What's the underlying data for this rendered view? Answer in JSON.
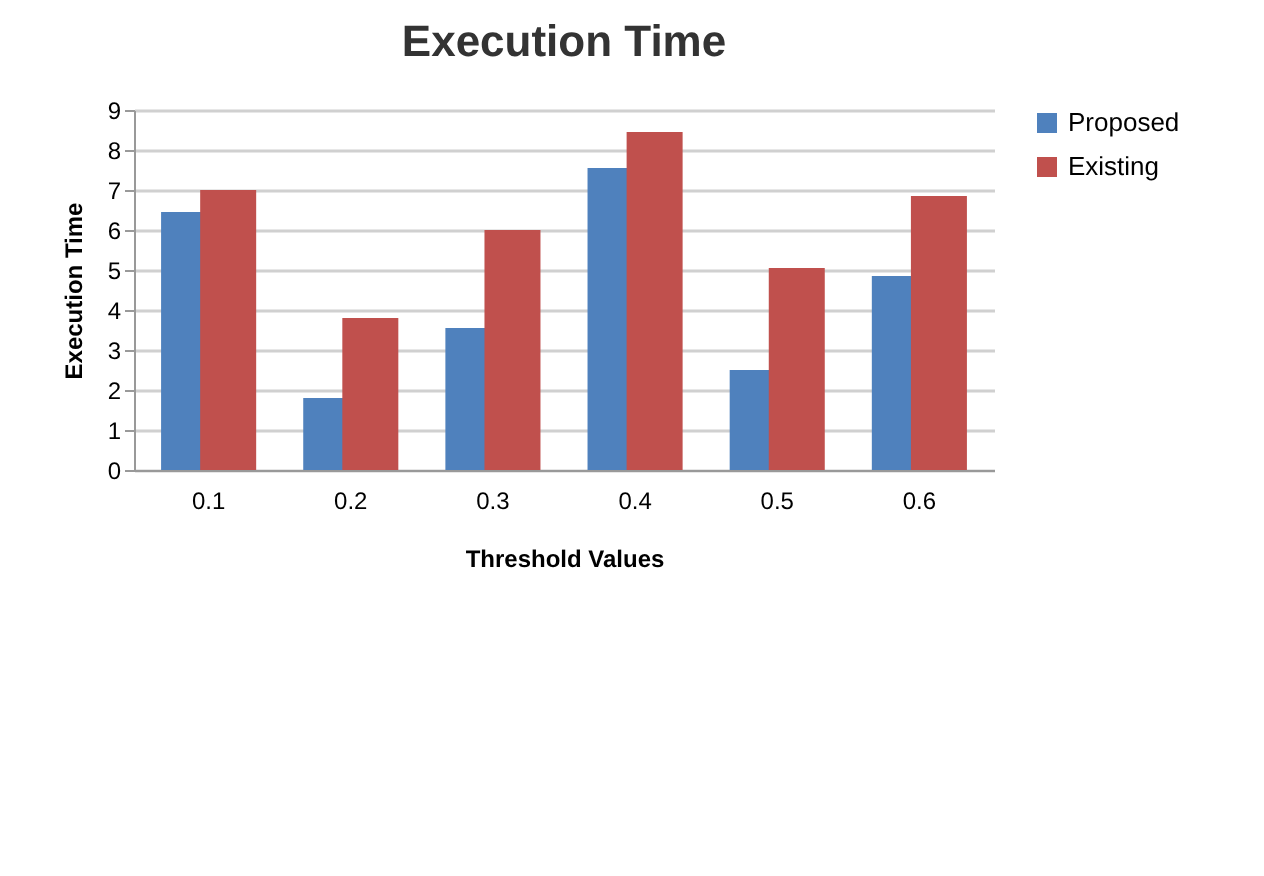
{
  "chart_data": {
    "type": "bar",
    "title": "Execution Time",
    "xlabel": "Threshold Values",
    "ylabel": "Execution Time",
    "categories": [
      "0.1",
      "0.2",
      "0.3",
      "0.4",
      "0.5",
      "0.6"
    ],
    "series": [
      {
        "name": "Proposed",
        "color": "#4f81bd",
        "values": [
          6.45,
          1.8,
          3.55,
          7.55,
          2.5,
          4.85
        ]
      },
      {
        "name": "Existing",
        "color": "#c0504d",
        "values": [
          7.0,
          3.8,
          6.0,
          8.45,
          5.05,
          6.85
        ]
      }
    ],
    "ylim": [
      0,
      9
    ],
    "yticks": [
      0,
      1,
      2,
      3,
      4,
      5,
      6,
      7,
      8,
      9
    ],
    "grid": "y",
    "legend": "right"
  }
}
